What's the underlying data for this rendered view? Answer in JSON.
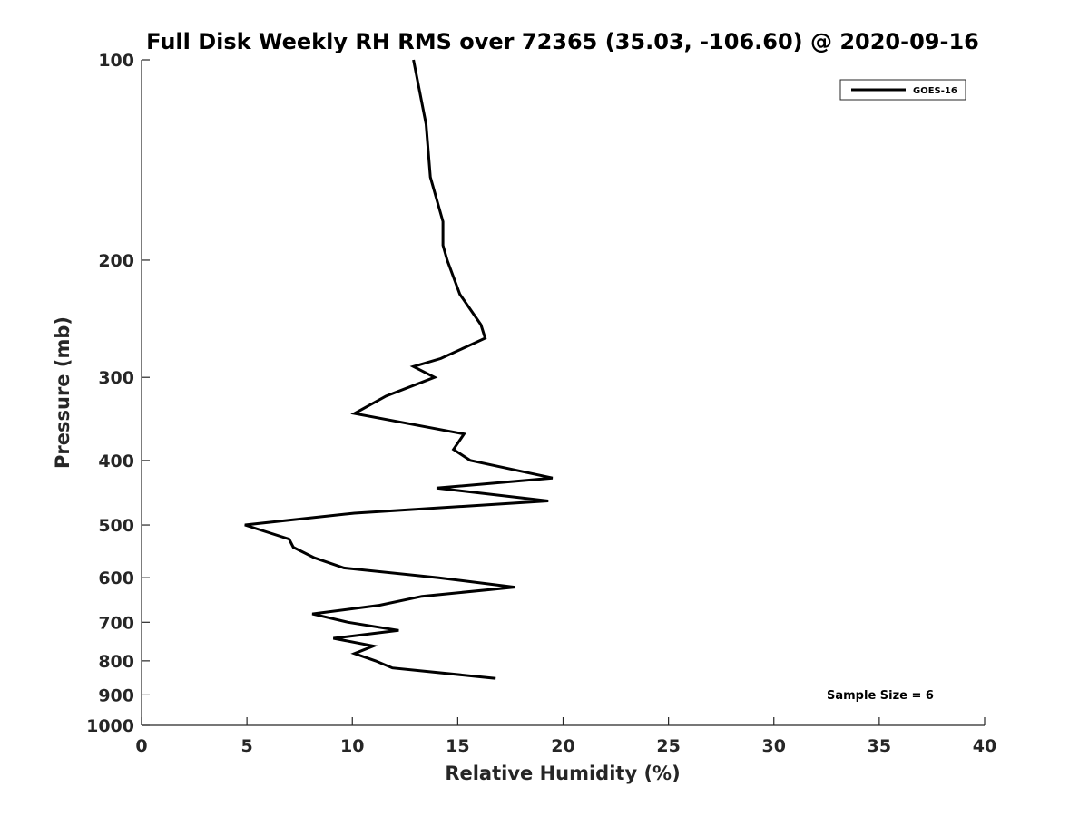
{
  "chart_data": {
    "type": "line",
    "title": "Full Disk Weekly RH RMS over 72365 (35.03, -106.60) @ 2020-09-16",
    "xlabel": "Relative Humidity (%)",
    "ylabel": "Pressure (mb)",
    "xlim": [
      0,
      40
    ],
    "ylim": [
      100,
      1000
    ],
    "y_scale": "log",
    "y_reversed": true,
    "x_ticks": [
      0,
      5,
      10,
      15,
      20,
      25,
      30,
      35,
      40
    ],
    "y_ticks": [
      100,
      200,
      300,
      400,
      500,
      600,
      700,
      800,
      900,
      1000
    ],
    "grid": false,
    "legend_position": "top-right",
    "series": [
      {
        "name": "GOES-16",
        "color": "#000000",
        "points": [
          [
            12.9,
            100
          ],
          [
            13.5,
            125
          ],
          [
            13.7,
            150
          ],
          [
            14.3,
            175
          ],
          [
            14.3,
            190
          ],
          [
            14.5,
            200
          ],
          [
            15.1,
            225
          ],
          [
            16.1,
            250
          ],
          [
            16.3,
            262
          ],
          [
            14.2,
            281
          ],
          [
            12.9,
            289
          ],
          [
            13.9,
            300
          ],
          [
            11.6,
            320
          ],
          [
            10.1,
            340
          ],
          [
            15.3,
            365
          ],
          [
            14.8,
            385
          ],
          [
            15.6,
            400
          ],
          [
            19.5,
            425
          ],
          [
            14.0,
            440
          ],
          [
            19.3,
            460
          ],
          [
            10.1,
            480
          ],
          [
            4.9,
            500
          ],
          [
            7.0,
            525
          ],
          [
            7.2,
            540
          ],
          [
            8.2,
            560
          ],
          [
            9.6,
            580
          ],
          [
            14.1,
            600
          ],
          [
            17.7,
            620
          ],
          [
            13.3,
            640
          ],
          [
            11.3,
            660
          ],
          [
            8.1,
            680
          ],
          [
            9.8,
            700
          ],
          [
            12.2,
            720
          ],
          [
            9.1,
            740
          ],
          [
            11.0,
            760
          ],
          [
            10.1,
            780
          ],
          [
            11.1,
            800
          ],
          [
            11.9,
            820
          ],
          [
            16.8,
            850
          ]
        ]
      }
    ],
    "legend": {
      "label": "GOES-16"
    },
    "annotation": "Sample Size = 6"
  }
}
